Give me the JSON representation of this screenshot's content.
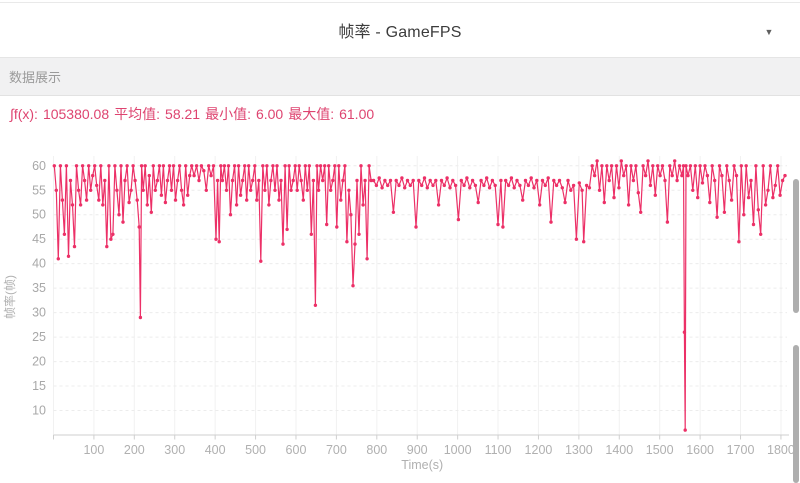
{
  "header": {
    "title": "帧率 - GameFPS",
    "dropdown_icon": "▼"
  },
  "section": {
    "label": "数据展示"
  },
  "stats": {
    "integral_label": "∫f(x):",
    "integral_value": "105380.08",
    "avg_label": "平均值:",
    "avg_value": "58.21",
    "min_label": "最小值:",
    "min_value": "6.00",
    "max_label": "最大值:",
    "max_value": "61.00"
  },
  "colors": {
    "accent": "#EC3067",
    "stats_text": "#DE4470",
    "axis_text_y": "#A8A8A8",
    "axis_text_x": "#B0B0B0",
    "grid_h": "#ECECEC",
    "grid_v": "#F1F1F1",
    "axis_line": "#CFCFCF",
    "section_bg": "#F1F1F2",
    "scrollbar": "#AEAEAE"
  },
  "chart_data": {
    "type": "line",
    "title": "帧率 - GameFPS",
    "xlabel": "Time(s)",
    "ylabel": "帧率(帧)",
    "xlim": [
      0,
      1815
    ],
    "ylim": [
      5,
      62
    ],
    "x_ticks": [
      100,
      200,
      300,
      400,
      500,
      600,
      700,
      800,
      900,
      1000,
      1100,
      1200,
      1300,
      1400,
      1500,
      1600,
      1700,
      1800
    ],
    "y_ticks": [
      10,
      15,
      20,
      25,
      30,
      35,
      40,
      45,
      50,
      55,
      60
    ],
    "grid": true,
    "legend": false,
    "marker": "circle",
    "stats": {
      "integral": 105380.08,
      "mean": 58.21,
      "min": 6.0,
      "max": 61.0
    },
    "points": [
      [
        2,
        60
      ],
      [
        7,
        55
      ],
      [
        12,
        41
      ],
      [
        17,
        60
      ],
      [
        22,
        53
      ],
      [
        27,
        46
      ],
      [
        32,
        60
      ],
      [
        37,
        41.5
      ],
      [
        42,
        57
      ],
      [
        47,
        52
      ],
      [
        52,
        43.5
      ],
      [
        57,
        60
      ],
      [
        62,
        55
      ],
      [
        67,
        52
      ],
      [
        72,
        60
      ],
      [
        77,
        57
      ],
      [
        82,
        53
      ],
      [
        87,
        60
      ],
      [
        92,
        55
      ],
      [
        97,
        58
      ],
      [
        102,
        60
      ],
      [
        107,
        56
      ],
      [
        112,
        53
      ],
      [
        117,
        60
      ],
      [
        122,
        52
      ],
      [
        127,
        57
      ],
      [
        132,
        43.5
      ],
      [
        137,
        60
      ],
      [
        142,
        45
      ],
      [
        147,
        46
      ],
      [
        152,
        60
      ],
      [
        157,
        55
      ],
      [
        162,
        50
      ],
      [
        167,
        60
      ],
      [
        172,
        48.5
      ],
      [
        177,
        57
      ],
      [
        182,
        60
      ],
      [
        187,
        52.5
      ],
      [
        192,
        55
      ],
      [
        197,
        60
      ],
      [
        202,
        57
      ],
      [
        207,
        53
      ],
      [
        212,
        47.5
      ],
      [
        215,
        29
      ],
      [
        218,
        60
      ],
      [
        222,
        55
      ],
      [
        227,
        60
      ],
      [
        232,
        52
      ],
      [
        237,
        58
      ],
      [
        242,
        50.5
      ],
      [
        247,
        60
      ],
      [
        252,
        55
      ],
      [
        257,
        57
      ],
      [
        262,
        60
      ],
      [
        267,
        54
      ],
      [
        272,
        60
      ],
      [
        277,
        52.5
      ],
      [
        282,
        57
      ],
      [
        287,
        60
      ],
      [
        292,
        55
      ],
      [
        297,
        60
      ],
      [
        302,
        53
      ],
      [
        307,
        57
      ],
      [
        312,
        60
      ],
      [
        317,
        55
      ],
      [
        322,
        52
      ],
      [
        327,
        60
      ],
      [
        332,
        54
      ],
      [
        337,
        58
      ],
      [
        342,
        60
      ],
      [
        348,
        58
      ],
      [
        354,
        60
      ],
      [
        360,
        57
      ],
      [
        366,
        60
      ],
      [
        372,
        59
      ],
      [
        378,
        55
      ],
      [
        384,
        60
      ],
      [
        390,
        58
      ],
      [
        396,
        60
      ],
      [
        402,
        45
      ],
      [
        406,
        57
      ],
      [
        410,
        44.5
      ],
      [
        414,
        60
      ],
      [
        418,
        57
      ],
      [
        423,
        60
      ],
      [
        428,
        55
      ],
      [
        433,
        60
      ],
      [
        438,
        50
      ],
      [
        443,
        57
      ],
      [
        448,
        60
      ],
      [
        453,
        52
      ],
      [
        458,
        60
      ],
      [
        463,
        54
      ],
      [
        468,
        57
      ],
      [
        473,
        60
      ],
      [
        478,
        53
      ],
      [
        483,
        60
      ],
      [
        488,
        55
      ],
      [
        493,
        57
      ],
      [
        498,
        60
      ],
      [
        503,
        53
      ],
      [
        508,
        57
      ],
      [
        513,
        40.5
      ],
      [
        518,
        60
      ],
      [
        523,
        55
      ],
      [
        528,
        60
      ],
      [
        533,
        52
      ],
      [
        538,
        57
      ],
      [
        543,
        60
      ],
      [
        548,
        55
      ],
      [
        553,
        60
      ],
      [
        558,
        53
      ],
      [
        563,
        57
      ],
      [
        568,
        44
      ],
      [
        573,
        60
      ],
      [
        578,
        47
      ],
      [
        583,
        60
      ],
      [
        588,
        55
      ],
      [
        593,
        57
      ],
      [
        598,
        60
      ],
      [
        603,
        55
      ],
      [
        608,
        60
      ],
      [
        613,
        57
      ],
      [
        618,
        53
      ],
      [
        623,
        60
      ],
      [
        628,
        55
      ],
      [
        633,
        60
      ],
      [
        638,
        46
      ],
      [
        643,
        57
      ],
      [
        648,
        31.5
      ],
      [
        652,
        60
      ],
      [
        656,
        55
      ],
      [
        661,
        60
      ],
      [
        666,
        57
      ],
      [
        671,
        60
      ],
      [
        676,
        48
      ],
      [
        681,
        60
      ],
      [
        686,
        55
      ],
      [
        691,
        57
      ],
      [
        696,
        60
      ],
      [
        701,
        47.5
      ],
      [
        706,
        60
      ],
      [
        711,
        53
      ],
      [
        716,
        57
      ],
      [
        721,
        60
      ],
      [
        726,
        44.5
      ],
      [
        731,
        55
      ],
      [
        736,
        50
      ],
      [
        741,
        35.5
      ],
      [
        746,
        44
      ],
      [
        751,
        57
      ],
      [
        756,
        46
      ],
      [
        761,
        60
      ],
      [
        766,
        52
      ],
      [
        771,
        57
      ],
      [
        776,
        41
      ],
      [
        781,
        60
      ],
      [
        786,
        57
      ],
      [
        792,
        57
      ],
      [
        799,
        56
      ],
      [
        806,
        57.5
      ],
      [
        813,
        55.5
      ],
      [
        820,
        57
      ],
      [
        827,
        56
      ],
      [
        834,
        57
      ],
      [
        841,
        50.5
      ],
      [
        848,
        57
      ],
      [
        855,
        56
      ],
      [
        862,
        57.5
      ],
      [
        869,
        55.5
      ],
      [
        876,
        57
      ],
      [
        883,
        56
      ],
      [
        890,
        57
      ],
      [
        897,
        47.5
      ],
      [
        904,
        57
      ],
      [
        911,
        56
      ],
      [
        918,
        57.5
      ],
      [
        925,
        55.5
      ],
      [
        932,
        57
      ],
      [
        939,
        56
      ],
      [
        946,
        57
      ],
      [
        953,
        52
      ],
      [
        960,
        57
      ],
      [
        967,
        56
      ],
      [
        974,
        57.5
      ],
      [
        981,
        55.5
      ],
      [
        988,
        57
      ],
      [
        995,
        56
      ],
      [
        1002,
        49
      ],
      [
        1009,
        57
      ],
      [
        1016,
        56
      ],
      [
        1023,
        57.5
      ],
      [
        1030,
        55.5
      ],
      [
        1037,
        57
      ],
      [
        1044,
        56
      ],
      [
        1051,
        52.5
      ],
      [
        1058,
        57
      ],
      [
        1065,
        56
      ],
      [
        1072,
        57.5
      ],
      [
        1079,
        55.5
      ],
      [
        1086,
        57
      ],
      [
        1093,
        56
      ],
      [
        1100,
        48
      ],
      [
        1107,
        57
      ],
      [
        1112,
        47.5
      ],
      [
        1119,
        57
      ],
      [
        1126,
        56
      ],
      [
        1133,
        57.5
      ],
      [
        1140,
        55.5
      ],
      [
        1147,
        57
      ],
      [
        1154,
        56
      ],
      [
        1161,
        53
      ],
      [
        1168,
        57
      ],
      [
        1175,
        56
      ],
      [
        1182,
        57.5
      ],
      [
        1189,
        55.5
      ],
      [
        1196,
        57
      ],
      [
        1203,
        52
      ],
      [
        1210,
        57
      ],
      [
        1217,
        56
      ],
      [
        1224,
        57.5
      ],
      [
        1231,
        48.5
      ],
      [
        1238,
        57
      ],
      [
        1245,
        56
      ],
      [
        1252,
        57
      ],
      [
        1259,
        55.5
      ],
      [
        1266,
        52.5
      ],
      [
        1273,
        57
      ],
      [
        1280,
        55
      ],
      [
        1287,
        56
      ],
      [
        1294,
        45
      ],
      [
        1301,
        56.5
      ],
      [
        1308,
        55
      ],
      [
        1312,
        44.5
      ],
      [
        1319,
        56
      ],
      [
        1326,
        55.5
      ],
      [
        1333,
        60
      ],
      [
        1339,
        58
      ],
      [
        1345,
        61
      ],
      [
        1351,
        55
      ],
      [
        1357,
        60
      ],
      [
        1363,
        52.5
      ],
      [
        1369,
        60
      ],
      [
        1375,
        57
      ],
      [
        1381,
        60
      ],
      [
        1387,
        53.5
      ],
      [
        1393,
        60
      ],
      [
        1399,
        55.5
      ],
      [
        1405,
        61
      ],
      [
        1411,
        58
      ],
      [
        1417,
        60
      ],
      [
        1423,
        52
      ],
      [
        1429,
        60
      ],
      [
        1435,
        57
      ],
      [
        1441,
        60
      ],
      [
        1447,
        54.5
      ],
      [
        1453,
        50.5
      ],
      [
        1459,
        60
      ],
      [
        1465,
        58
      ],
      [
        1471,
        61
      ],
      [
        1477,
        56
      ],
      [
        1483,
        60
      ],
      [
        1489,
        54
      ],
      [
        1495,
        60
      ],
      [
        1501,
        58
      ],
      [
        1507,
        60
      ],
      [
        1513,
        57
      ],
      [
        1519,
        48.5
      ],
      [
        1525,
        60
      ],
      [
        1531,
        58
      ],
      [
        1537,
        61
      ],
      [
        1543,
        57
      ],
      [
        1549,
        60
      ],
      [
        1555,
        58
      ],
      [
        1559,
        60
      ],
      [
        1561,
        26
      ],
      [
        1563,
        6
      ],
      [
        1565,
        60
      ],
      [
        1570,
        58
      ],
      [
        1576,
        60
      ],
      [
        1582,
        55
      ],
      [
        1588,
        60
      ],
      [
        1594,
        53.5
      ],
      [
        1600,
        60
      ],
      [
        1606,
        56.5
      ],
      [
        1612,
        60
      ],
      [
        1618,
        58
      ],
      [
        1624,
        52.5
      ],
      [
        1630,
        60
      ],
      [
        1636,
        57
      ],
      [
        1642,
        49.5
      ],
      [
        1648,
        60
      ],
      [
        1654,
        58
      ],
      [
        1660,
        50.5
      ],
      [
        1666,
        60
      ],
      [
        1672,
        57
      ],
      [
        1678,
        53
      ],
      [
        1684,
        60
      ],
      [
        1690,
        58
      ],
      [
        1696,
        44.5
      ],
      [
        1702,
        60
      ],
      [
        1708,
        50
      ],
      [
        1714,
        60
      ],
      [
        1720,
        53.5
      ],
      [
        1726,
        57
      ],
      [
        1732,
        48
      ],
      [
        1738,
        60
      ],
      [
        1744,
        51
      ],
      [
        1750,
        46
      ],
      [
        1756,
        60
      ],
      [
        1762,
        52
      ],
      [
        1768,
        55
      ],
      [
        1774,
        60
      ],
      [
        1780,
        53.5
      ],
      [
        1786,
        56
      ],
      [
        1792,
        60
      ],
      [
        1798,
        54
      ],
      [
        1804,
        57
      ],
      [
        1810,
        58
      ]
    ]
  }
}
